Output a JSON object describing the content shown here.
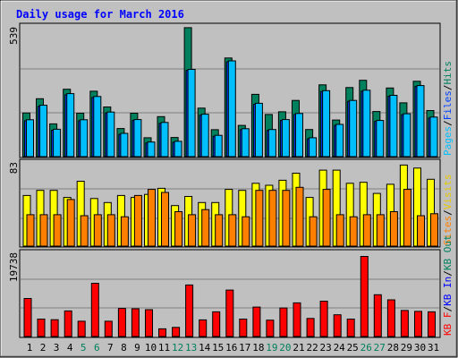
{
  "chart_data": [
    {
      "type": "bar",
      "title": "Daily usage for March 2016",
      "categories": [
        "1",
        "2",
        "3",
        "4",
        "5",
        "6",
        "7",
        "8",
        "9",
        "10",
        "11",
        "12",
        "13",
        "14",
        "15",
        "16",
        "17",
        "18",
        "19",
        "20",
        "21",
        "22",
        "23",
        "24",
        "25",
        "26",
        "27",
        "28",
        "29",
        "30",
        "31"
      ],
      "weekend_days": [
        "5",
        "6",
        "12",
        "13",
        "19",
        "20",
        "26",
        "27"
      ],
      "ylim": [
        0,
        539
      ],
      "y_tick_label": "539",
      "side_labels": [
        "Pages",
        "Files",
        "Hits"
      ],
      "series": [
        {
          "name": "Hits",
          "color": "#00805c",
          "values": [
            180,
            239,
            135,
            278,
            179,
            270,
            205,
            116,
            179,
            78,
            165,
            79,
            532,
            200,
            111,
            407,
            129,
            257,
            174,
            185,
            232,
            112,
            296,
            151,
            285,
            315,
            186,
            283,
            222,
            311,
            190
          ]
        },
        {
          "name": "Files",
          "color": "#00bfff",
          "values": [
            152,
            212,
            113,
            260,
            152,
            248,
            184,
            96,
            153,
            60,
            141,
            63,
            360,
            175,
            88,
            395,
            115,
            220,
            112,
            153,
            178,
            78,
            272,
            133,
            232,
            274,
            149,
            253,
            177,
            293,
            163
          ]
        },
        {
          "name": "Pages",
          "color": "#0040ff",
          "values": [
            148,
            208,
            109,
            255,
            148,
            244,
            180,
            92,
            149,
            56,
            137,
            59,
            356,
            171,
            84,
            391,
            111,
            216,
            108,
            149,
            174,
            74,
            268,
            129,
            228,
            270,
            145,
            249,
            173,
            289,
            159
          ]
        }
      ]
    },
    {
      "type": "bar",
      "ylim": [
        0,
        83
      ],
      "y_tick_label": "83",
      "side_labels": [
        "Sites",
        "Visits"
      ],
      "series": [
        {
          "name": "Visits",
          "color": "#ffff00",
          "values": [
            50,
            55,
            55,
            48,
            64,
            47,
            43,
            50,
            48,
            51,
            57,
            40,
            49,
            43,
            43,
            56,
            55,
            62,
            60,
            65,
            72,
            48,
            75,
            75,
            62,
            63,
            52,
            61,
            80,
            77,
            66
          ]
        },
        {
          "name": "Sites",
          "color": "#ff8000",
          "values": [
            31,
            31,
            31,
            46,
            30,
            31,
            31,
            29,
            50,
            56,
            53,
            34,
            31,
            36,
            31,
            31,
            29,
            55,
            55,
            55,
            58,
            29,
            56,
            31,
            29,
            31,
            31,
            34,
            56,
            30,
            32
          ]
        }
      ]
    },
    {
      "type": "bar",
      "ylim": [
        0,
        19738
      ],
      "y_tick_label": "19738",
      "side_labels": [
        "KB F",
        "KB In",
        "KB Out"
      ],
      "series": [
        {
          "name": "KB F",
          "color": "#ff0000",
          "values": [
            8920,
            4100,
            3950,
            6000,
            3600,
            12500,
            3600,
            6600,
            6500,
            6300,
            1800,
            2150,
            12100,
            3900,
            5800,
            10900,
            4100,
            6900,
            3850,
            6700,
            7900,
            4250,
            8300,
            5100,
            4100,
            18800,
            9800,
            8600,
            6100,
            5900,
            5800
          ]
        }
      ]
    }
  ]
}
